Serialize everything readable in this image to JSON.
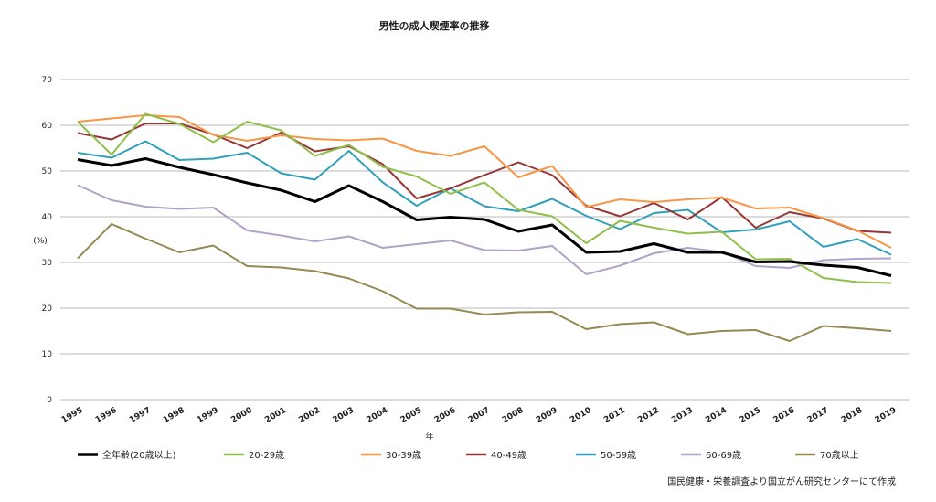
{
  "chart_data": {
    "type": "line",
    "title": "男性の成人喫煙率の推移",
    "xlabel": "年",
    "ylabel": "(%)",
    "ylim": [
      0,
      70
    ],
    "yticks": [
      "0",
      "10",
      "20",
      "30",
      "40",
      "50",
      "60",
      "70"
    ],
    "grid": true,
    "legend_position": "bottom",
    "x": [
      "1995",
      "1996",
      "1997",
      "1998",
      "1999",
      "2000",
      "2001",
      "2002",
      "2003",
      "2004",
      "2005",
      "2006",
      "2007",
      "2008",
      "2009",
      "2010",
      "2011",
      "2012",
      "2013",
      "2014",
      "2015",
      "2016",
      "2017",
      "2018",
      "2019"
    ],
    "series": [
      {
        "name": "全年齢(20歳以上)",
        "color": "#000000",
        "width": 3,
        "values": [
          52.5,
          51.2,
          52.7,
          50.8,
          49.2,
          47.4,
          45.8,
          43.3,
          46.8,
          43.3,
          39.3,
          39.9,
          39.4,
          36.8,
          38.2,
          32.2,
          32.4,
          34.1,
          32.2,
          32.2,
          30.1,
          30.2,
          29.4,
          28.9,
          27.1
        ]
      },
      {
        "name": "20-29歳",
        "color": "#8fbf4a",
        "width": 2,
        "values": [
          60.8,
          53.6,
          62.5,
          60.3,
          56.3,
          60.8,
          58.9,
          53.3,
          55.7,
          50.9,
          48.8,
          45.0,
          47.5,
          41.5,
          40.1,
          34.2,
          39.1,
          37.6,
          36.3,
          36.7,
          30.7,
          30.8,
          26.6,
          25.7,
          25.5
        ]
      },
      {
        "name": "30-39歳",
        "color": "#f79646",
        "width": 2,
        "values": [
          60.8,
          61.5,
          62.2,
          61.8,
          57.9,
          56.6,
          57.8,
          57.0,
          56.7,
          57.1,
          54.4,
          53.3,
          55.4,
          48.6,
          51.1,
          42.1,
          43.8,
          43.2,
          43.8,
          44.2,
          41.8,
          42.0,
          39.7,
          37.0,
          33.2
        ]
      },
      {
        "name": "40-49歳",
        "color": "#953735",
        "width": 2,
        "values": [
          58.3,
          56.9,
          60.4,
          60.4,
          58.0,
          55.0,
          58.4,
          54.3,
          55.4,
          51.5,
          44.0,
          46.2,
          49.1,
          51.9,
          49.1,
          42.4,
          40.1,
          43.0,
          39.4,
          44.3,
          37.6,
          41.0,
          39.6,
          36.9,
          36.5
        ]
      },
      {
        "name": "50-59歳",
        "color": "#31a0b8",
        "width": 2,
        "values": [
          54.0,
          52.9,
          56.5,
          52.4,
          52.7,
          54.0,
          49.5,
          48.1,
          54.4,
          47.5,
          42.4,
          46.2,
          42.3,
          41.2,
          43.9,
          40.2,
          37.3,
          40.8,
          41.5,
          36.6,
          37.2,
          39.0,
          33.4,
          35.1,
          31.7
        ]
      },
      {
        "name": "60-69歳",
        "color": "#b3a2c7",
        "width": 2,
        "values": [
          46.9,
          43.6,
          42.2,
          41.7,
          42.0,
          37.0,
          35.9,
          34.6,
          35.7,
          33.2,
          34.0,
          34.8,
          32.7,
          32.6,
          33.6,
          27.4,
          29.3,
          32.0,
          33.2,
          32.3,
          29.2,
          28.8,
          30.5,
          30.8,
          30.9
        ]
      },
      {
        "name": "70歳以上",
        "color": "#948a54",
        "width": 2,
        "values": [
          30.9,
          38.4,
          35.2,
          32.2,
          33.7,
          29.2,
          28.9,
          28.1,
          26.5,
          23.7,
          19.9,
          19.9,
          18.6,
          19.1,
          19.2,
          15.4,
          16.5,
          16.9,
          14.3,
          15.0,
          15.2,
          12.8,
          16.1,
          15.6,
          15.0
        ]
      }
    ],
    "source": "国民健康・栄養調査より国立がん研究センターにて作成"
  }
}
